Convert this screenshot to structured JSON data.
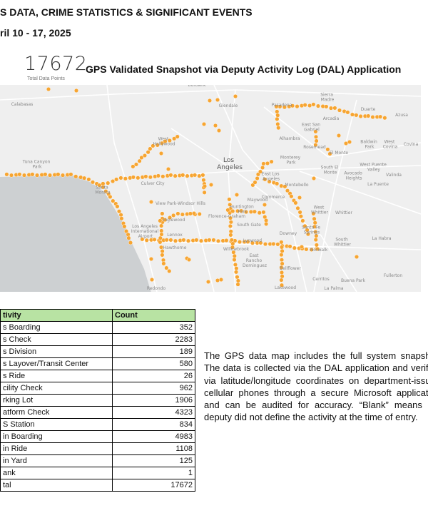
{
  "header": {
    "title": "S DATA, CRIME STATISTICS & SIGNIFICANT EVENTS",
    "date_range": "ril 10 - 17, 2025"
  },
  "kpi": {
    "value": "17672",
    "label": "Total Data Points"
  },
  "map": {
    "title": "GPS Validated Snapshot via Deputy Activity Log (DAL) Application",
    "dot_color": "#f7a531",
    "labels": [
      "Calabasas",
      "Burbank",
      "Glendale",
      "Pasadena",
      "Sierra Madre",
      "Arcadia",
      "Duarte",
      "Azusa",
      "East San Gabriel",
      "Alhambra",
      "Rosemead",
      "El Monte",
      "Baldwin Park",
      "West Covina",
      "Covina",
      "West Hollywood",
      "Monterey Park",
      "Los Angeles",
      "South El Monte",
      "West Puente Valley",
      "Avocado Heights",
      "Valinda",
      "Tuna Canyon Park",
      "East Los Angeles",
      "Santa Monica",
      "Culver City",
      "Montebello",
      "La Puente",
      "Commerce",
      "View Park-Windsor Hills",
      "Maywood",
      "Huntington Park",
      "Florence-Graham",
      "West Whittier",
      "Whittier",
      "Inglewood",
      "South Gate",
      "Los Angeles International Airport",
      "Lennox",
      "Santa Fe Springs",
      "Downey",
      "La Habra",
      "South Whittier",
      "Lynwood",
      "Hawthorne",
      "Willowbrook",
      "Norwalk",
      "East Rancho Dominguez",
      "Bellflower",
      "Cerritos",
      "Buena Park",
      "Fullerton",
      "Lakewood",
      "Redondo",
      "La Palma"
    ]
  },
  "table": {
    "headers": [
      "tivity",
      "Count"
    ],
    "rows": [
      [
        "s Boarding",
        "352"
      ],
      [
        "s Check",
        "2283"
      ],
      [
        "s Division",
        "189"
      ],
      [
        "s Layover/Transit Center",
        "580"
      ],
      [
        "s Ride",
        "26"
      ],
      [
        "cility Check",
        "962"
      ],
      [
        "rking Lot",
        "1906"
      ],
      [
        "atform Check",
        "4323"
      ],
      [
        "S Station",
        "834"
      ],
      [
        "in Boarding",
        "4983"
      ],
      [
        "in Ride",
        "1108"
      ],
      [
        "in Yard",
        "125"
      ],
      [
        "ank",
        "1"
      ],
      [
        "tal",
        "17672"
      ]
    ]
  },
  "description": "The GPS data map includes the full system snapshot. The data is collected via the DAL application and verified via latitude/longitude coordinates on department-issued cellular phones through a secure Microsoft application and can be audited for accuracy. “Blank” means the deputy did not define the activity at the time of entry."
}
